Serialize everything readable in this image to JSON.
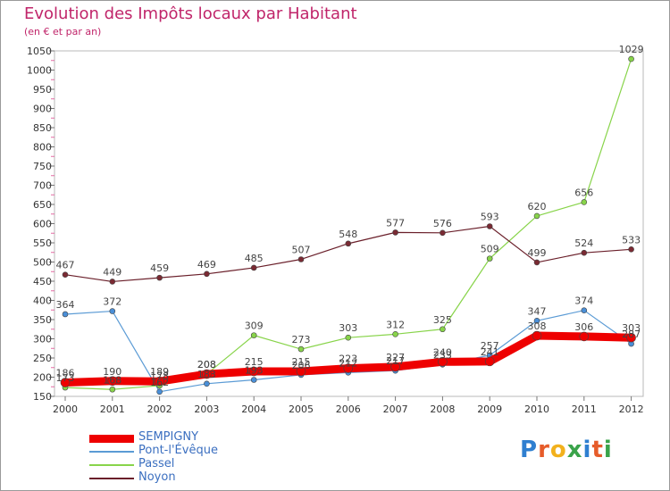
{
  "title": "Evolution des Impôts locaux par Habitant",
  "subtitle": "(en € et par an)",
  "logo": {
    "letters": [
      {
        "ch": "P",
        "color": "#2f7fd0"
      },
      {
        "ch": "r",
        "color": "#e65c2a"
      },
      {
        "ch": "o",
        "color": "#f2b11d"
      },
      {
        "ch": "x",
        "color": "#3aa34a"
      },
      {
        "ch": "i",
        "color": "#2f7fd0"
      },
      {
        "ch": "t",
        "color": "#e65c2a"
      },
      {
        "ch": "i",
        "color": "#3aa34a"
      }
    ]
  },
  "chart_data": {
    "type": "line",
    "title": "Evolution des Impôts locaux par Habitant",
    "subtitle": "(en € et par an)",
    "x": [
      "2000",
      "2001",
      "2002",
      "2003",
      "2004",
      "2005",
      "2006",
      "2007",
      "2008",
      "2009",
      "2010",
      "2011",
      "2012"
    ],
    "ylim": [
      150,
      1050
    ],
    "yticks": [
      150,
      200,
      250,
      300,
      350,
      400,
      450,
      500,
      550,
      600,
      650,
      700,
      750,
      800,
      850,
      900,
      950,
      1000,
      1050
    ],
    "grid": false,
    "legend_position": "bottom-left",
    "series": [
      {
        "name": "SEMPIGNY",
        "color": "#ee0000",
        "marker": "#ee0000",
        "width": 9,
        "values": [
          186,
          190,
          189,
          208,
          215,
          215,
          223,
          227,
          240,
          241,
          308,
          306,
          303
        ]
      },
      {
        "name": "Pont-l'Évêque",
        "color": "#5b9bd5",
        "marker": "#4a8fd8",
        "width": 1.2,
        "values": [
          364,
          372,
          162,
          183,
          193,
          206,
          212,
          217,
          233,
          257,
          347,
          374,
          287
        ]
      },
      {
        "name": "Passel",
        "color": "#88d44a",
        "marker": "#88d44a",
        "width": 1.2,
        "values": [
          173,
          168,
          178,
          208,
          309,
          273,
          303,
          312,
          325,
          509,
          620,
          656,
          1029
        ]
      },
      {
        "name": "Noyon",
        "color": "#6a1f2a",
        "marker": "#7a2a33",
        "width": 1.2,
        "values": [
          467,
          449,
          459,
          469,
          485,
          507,
          548,
          577,
          576,
          593,
          499,
          524,
          533
        ]
      }
    ]
  }
}
